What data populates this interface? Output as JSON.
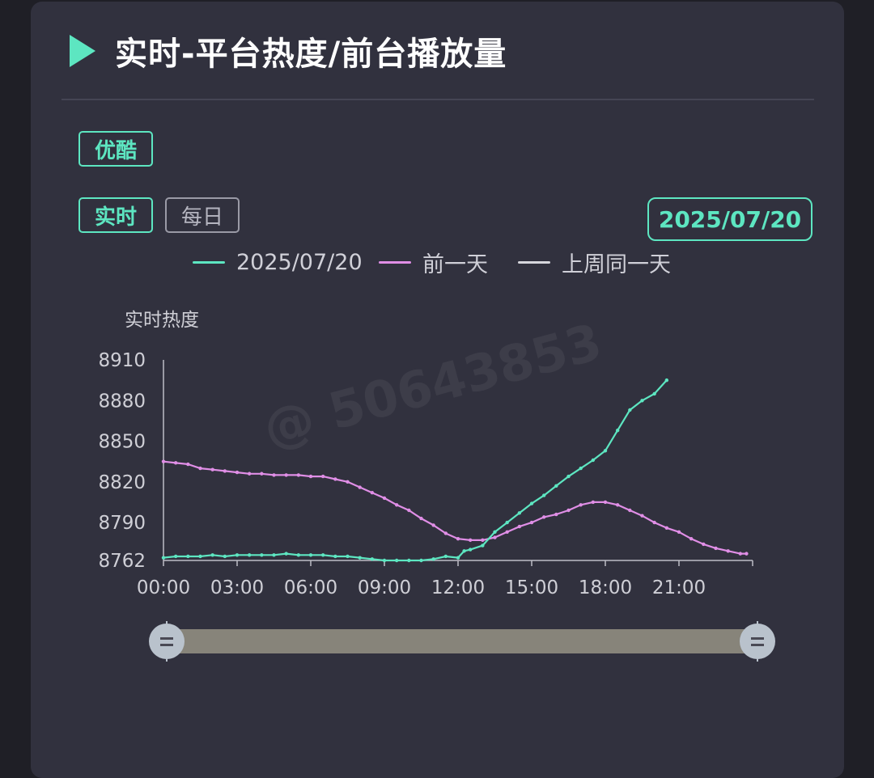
{
  "header": {
    "title": "实时-平台热度/前台播放量"
  },
  "platform_tab": {
    "label": "优酷"
  },
  "mode_tabs": [
    {
      "label": "实时",
      "active": true
    },
    {
      "label": "每日",
      "active": false
    }
  ],
  "date_picker": {
    "label": "2025/07/20"
  },
  "legend": [
    {
      "label": "2025/07/20",
      "color": "#5de6c1"
    },
    {
      "label": "前一天",
      "color": "#e08ee6"
    },
    {
      "label": "上周同一天",
      "color": "#d6d6dc"
    }
  ],
  "watermark": {
    "text": "@ 50643853"
  },
  "chart_data": {
    "type": "line",
    "ylabel": "实时热度",
    "ylim": [
      8762,
      8910
    ],
    "yticks": [
      "8910",
      "8880",
      "8850",
      "8820",
      "8790",
      "8762"
    ],
    "xticks": [
      "00:00",
      "03:00",
      "06:00",
      "09:00",
      "12:00",
      "15:00",
      "18:00",
      "21:00"
    ],
    "xlim": [
      "00:00",
      "24:00"
    ],
    "series": [
      {
        "name": "2025/07/20",
        "color": "#5de6c1",
        "points": [
          [
            "00:00",
            8764
          ],
          [
            "00:30",
            8765
          ],
          [
            "01:00",
            8765
          ],
          [
            "01:30",
            8765
          ],
          [
            "02:00",
            8766
          ],
          [
            "02:30",
            8765
          ],
          [
            "03:00",
            8766
          ],
          [
            "03:30",
            8766
          ],
          [
            "04:00",
            8766
          ],
          [
            "04:30",
            8766
          ],
          [
            "05:00",
            8767
          ],
          [
            "05:30",
            8766
          ],
          [
            "06:00",
            8766
          ],
          [
            "06:30",
            8766
          ],
          [
            "07:00",
            8765
          ],
          [
            "07:30",
            8765
          ],
          [
            "08:00",
            8764
          ],
          [
            "08:30",
            8763
          ],
          [
            "09:00",
            8762
          ],
          [
            "09:30",
            8762
          ],
          [
            "10:00",
            8762
          ],
          [
            "10:30",
            8762
          ],
          [
            "11:00",
            8763
          ],
          [
            "11:30",
            8765
          ],
          [
            "12:00",
            8764
          ],
          [
            "12:15",
            8769
          ],
          [
            "12:30",
            8770
          ],
          [
            "13:00",
            8773
          ],
          [
            "13:30",
            8783
          ],
          [
            "14:00",
            8790
          ],
          [
            "14:30",
            8797
          ],
          [
            "15:00",
            8804
          ],
          [
            "15:30",
            8810
          ],
          [
            "16:00",
            8817
          ],
          [
            "16:30",
            8824
          ],
          [
            "17:00",
            8830
          ],
          [
            "17:30",
            8836
          ],
          [
            "18:00",
            8843
          ],
          [
            "18:30",
            8858
          ],
          [
            "19:00",
            8873
          ],
          [
            "19:30",
            8880
          ],
          [
            "20:00",
            8885
          ],
          [
            "20:30",
            8895
          ]
        ]
      },
      {
        "name": "前一天",
        "color": "#e08ee6",
        "points": [
          [
            "00:00",
            8835
          ],
          [
            "00:30",
            8834
          ],
          [
            "01:00",
            8833
          ],
          [
            "01:30",
            8830
          ],
          [
            "02:00",
            8829
          ],
          [
            "02:30",
            8828
          ],
          [
            "03:00",
            8827
          ],
          [
            "03:30",
            8826
          ],
          [
            "04:00",
            8826
          ],
          [
            "04:30",
            8825
          ],
          [
            "05:00",
            8825
          ],
          [
            "05:30",
            8825
          ],
          [
            "06:00",
            8824
          ],
          [
            "06:30",
            8824
          ],
          [
            "07:00",
            8822
          ],
          [
            "07:30",
            8820
          ],
          [
            "08:00",
            8816
          ],
          [
            "08:30",
            8812
          ],
          [
            "09:00",
            8808
          ],
          [
            "09:30",
            8803
          ],
          [
            "10:00",
            8799
          ],
          [
            "10:30",
            8793
          ],
          [
            "11:00",
            8788
          ],
          [
            "11:30",
            8782
          ],
          [
            "12:00",
            8778
          ],
          [
            "12:30",
            8777
          ],
          [
            "13:00",
            8777
          ],
          [
            "13:30",
            8779
          ],
          [
            "14:00",
            8783
          ],
          [
            "14:30",
            8787
          ],
          [
            "15:00",
            8790
          ],
          [
            "15:30",
            8794
          ],
          [
            "16:00",
            8796
          ],
          [
            "16:30",
            8799
          ],
          [
            "17:00",
            8803
          ],
          [
            "17:30",
            8805
          ],
          [
            "18:00",
            8805
          ],
          [
            "18:30",
            8803
          ],
          [
            "19:00",
            8799
          ],
          [
            "19:30",
            8795
          ],
          [
            "20:00",
            8790
          ],
          [
            "20:30",
            8786
          ],
          [
            "21:00",
            8783
          ],
          [
            "21:30",
            8778
          ],
          [
            "22:00",
            8774
          ],
          [
            "22:30",
            8771
          ],
          [
            "23:00",
            8769
          ],
          [
            "23:30",
            8767
          ],
          [
            "23:45",
            8767
          ]
        ]
      }
    ],
    "zoom_range": [
      0,
      100
    ]
  }
}
